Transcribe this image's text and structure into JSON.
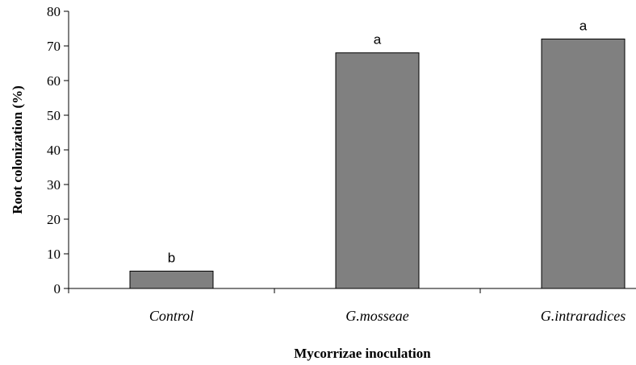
{
  "chart_data": {
    "type": "bar",
    "categories": [
      "Control",
      "G.mosseae",
      "G.intraradices"
    ],
    "values": [
      5,
      68,
      72
    ],
    "bar_labels": [
      "b",
      "a",
      "a"
    ],
    "xlabel": "Mycorrizae inoculation",
    "ylabel": "Root colonization (%)",
    "ylim": [
      0,
      80
    ],
    "yticks": [
      0,
      10,
      20,
      30,
      40,
      50,
      60,
      70,
      80
    ],
    "grid": false,
    "legend": "none",
    "colors": {
      "bar_fill": "#808080",
      "bar_stroke": "#000000",
      "axis": "#000000"
    }
  }
}
